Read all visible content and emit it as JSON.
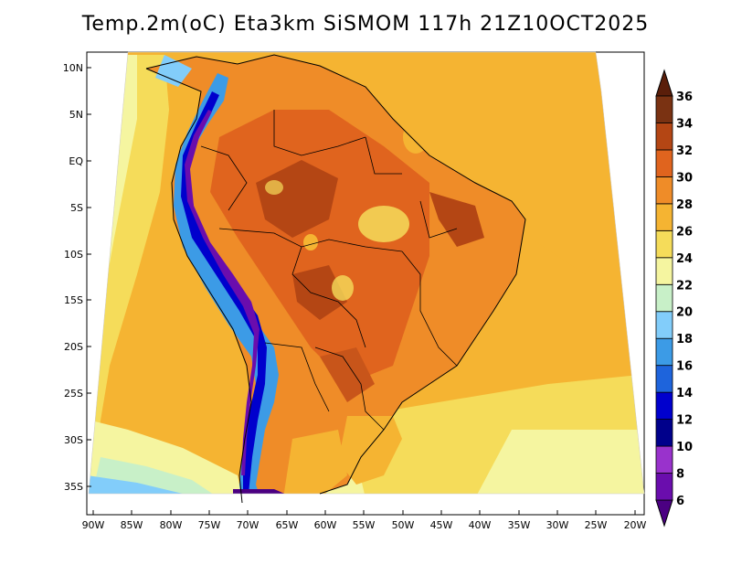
{
  "title": "Temp.2m(oC) Eta3km SiSMOM 117h 21Z10OCT2025",
  "map": {
    "variable": "Temperature at 2 m",
    "units": "oC",
    "lat_labels": [
      "10N",
      "5N",
      "EQ",
      "5S",
      "10S",
      "15S",
      "20S",
      "25S",
      "30S",
      "35S"
    ],
    "lat_values": [
      10,
      5,
      0,
      -5,
      -10,
      -15,
      -20,
      -25,
      -30,
      -35
    ],
    "lon_labels": [
      "90W",
      "85W",
      "80W",
      "75W",
      "70W",
      "65W",
      "60W",
      "55W",
      "50W",
      "45W",
      "40W",
      "35W",
      "30W",
      "25W",
      "20W"
    ],
    "lon_values": [
      -90,
      -85,
      -80,
      -75,
      -70,
      -65,
      -60,
      -55,
      -50,
      -45,
      -40,
      -35,
      -30,
      -25,
      -20
    ],
    "lat_range": [
      -38,
      12
    ],
    "lon_range": [
      -91,
      -19
    ]
  },
  "colorbar": {
    "levels": [
      6,
      8,
      10,
      12,
      14,
      16,
      18,
      20,
      22,
      24,
      26,
      28,
      30,
      32,
      34,
      36
    ],
    "labels": [
      "6",
      "8",
      "10",
      "12",
      "14",
      "16",
      "18",
      "20",
      "22",
      "24",
      "26",
      "28",
      "30",
      "32",
      "34",
      "36"
    ],
    "colors": [
      "#4b0082",
      "#6a0dad",
      "#9932cc",
      "#00008b",
      "#0000cd",
      "#1e64dc",
      "#3c9be6",
      "#82cdfa",
      "#c8f0c8",
      "#f5f5a0",
      "#f5dc5a",
      "#f5b432",
      "#ef8c28",
      "#e0641e",
      "#b44614",
      "#7a3212",
      "#5a1e0a"
    ]
  }
}
